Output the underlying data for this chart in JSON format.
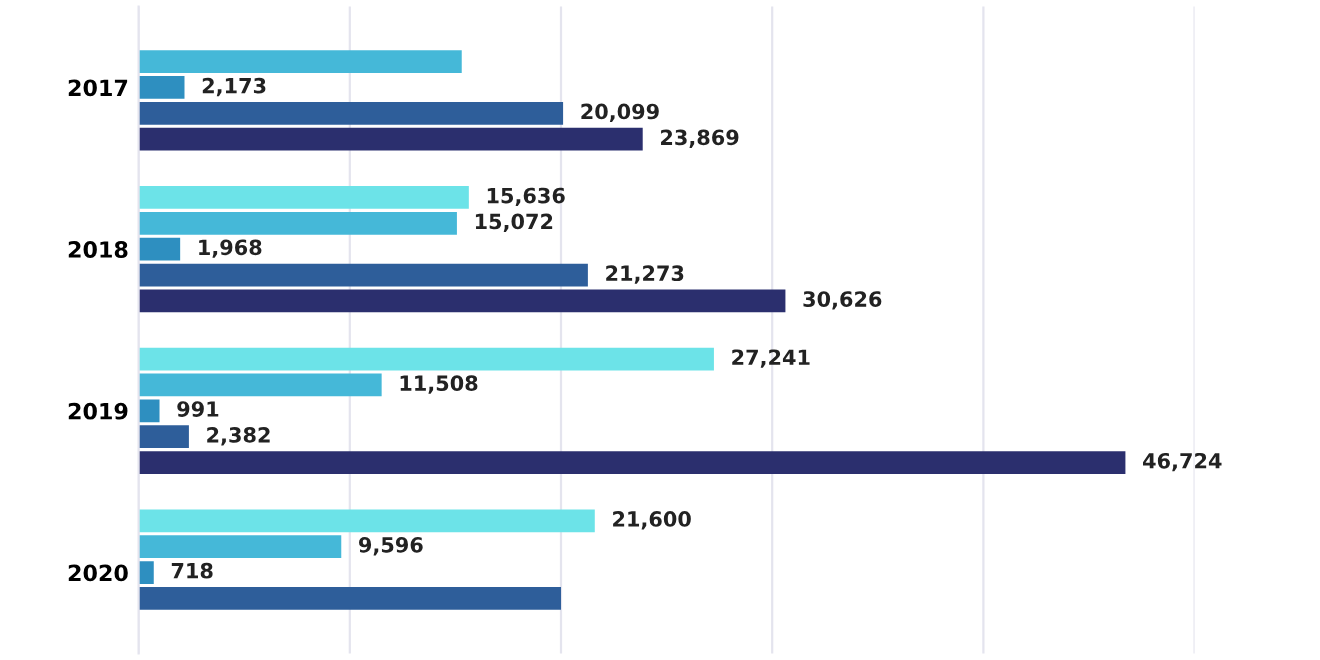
{
  "chart_data": {
    "type": "bar",
    "orientation": "horizontal",
    "categories": [
      "2017",
      "2018",
      "2019",
      "2020"
    ],
    "series": [
      {
        "color": "#6ce3e8",
        "values": [
          null,
          15636,
          27241,
          21600
        ],
        "value_labels": [
          null,
          "15,636",
          "27,241",
          "21,600"
        ]
      },
      {
        "color": "#45b8d8",
        "values": [
          15300,
          15072,
          11508,
          9596
        ],
        "value_labels": [
          null,
          "15,072",
          "11,508",
          "9,596"
        ]
      },
      {
        "color": "#2e8fc0",
        "values": [
          2173,
          1968,
          991,
          718
        ],
        "value_labels": [
          "2,173",
          "1,968",
          "991",
          "718"
        ]
      },
      {
        "color": "#2e5e9a",
        "values": [
          20099,
          21273,
          2382,
          20000
        ],
        "value_labels": [
          "20,099",
          "21,273",
          "2,382",
          null
        ]
      },
      {
        "color": "#2b2f6e",
        "values": [
          23869,
          30626,
          46724,
          null
        ],
        "value_labels": [
          "23,869",
          "30,626",
          "46,724",
          null
        ]
      }
    ],
    "xlim": [
      0,
      50000
    ],
    "xticks": [
      {
        "value": 0,
        "label": null
      },
      {
        "value": 10000,
        "label": null
      },
      {
        "value": 20000,
        "label": null
      },
      {
        "value": 30000,
        "label": null
      },
      {
        "value": 40000,
        "label": null
      },
      {
        "value": 50000,
        "label": null
      }
    ],
    "tick_labels": "y",
    "grid": "x"
  }
}
